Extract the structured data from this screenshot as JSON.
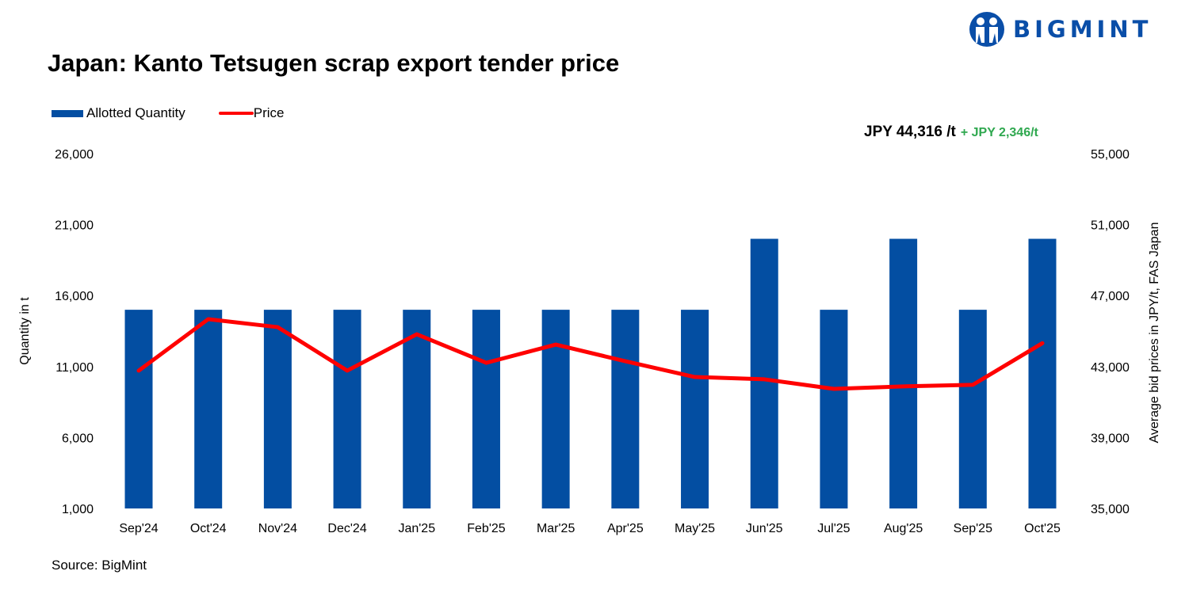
{
  "logo": {
    "text": "BIGMINT",
    "color": "#0a4ea8"
  },
  "chart_data": {
    "type": "bar+line",
    "title": "Japan: Kanto Tetsugen scrap export tender price",
    "categories": [
      "Sep'24",
      "Oct'24",
      "Nov'24",
      "Dec'24",
      "Jan'25",
      "Feb'25",
      "Mar'25",
      "Apr'25",
      "May'25",
      "Jun'25",
      "Jul'25",
      "Aug'25",
      "Sep'25",
      "Oct'25"
    ],
    "series": [
      {
        "name": "Allotted Quantity",
        "type": "bar",
        "axis": "left",
        "color": "#034ea2",
        "values": [
          15000,
          15000,
          15000,
          15000,
          15000,
          15000,
          15000,
          15000,
          15000,
          20000,
          15000,
          20000,
          15000,
          20000
        ]
      },
      {
        "name": "Price",
        "type": "line",
        "axis": "right",
        "color": "#ff0000",
        "values": [
          42770,
          45670,
          45220,
          42770,
          44820,
          43210,
          44240,
          43300,
          42410,
          42280,
          41740,
          41880,
          41970,
          44316
        ]
      }
    ],
    "ylabel_left": "Quantity in t",
    "ylabel_right": "Average bid prices in JPY/t, FAS Japan",
    "ylim_left": [
      1000,
      26000
    ],
    "yticks_left": [
      "1,000",
      "6,000",
      "11,000",
      "16,000",
      "21,000",
      "26,000"
    ],
    "ylim_right": [
      35000,
      55000
    ],
    "yticks_right": [
      "35,000",
      "39,000",
      "43,000",
      "47,000",
      "51,000",
      "55,000"
    ],
    "grid": false,
    "legend_position": "top-left",
    "annotation": {
      "price": "JPY 44,316 /t",
      "change": "+ JPY 2,346/t",
      "change_color": "#2fa84f"
    },
    "source": "Source: BigMint"
  }
}
